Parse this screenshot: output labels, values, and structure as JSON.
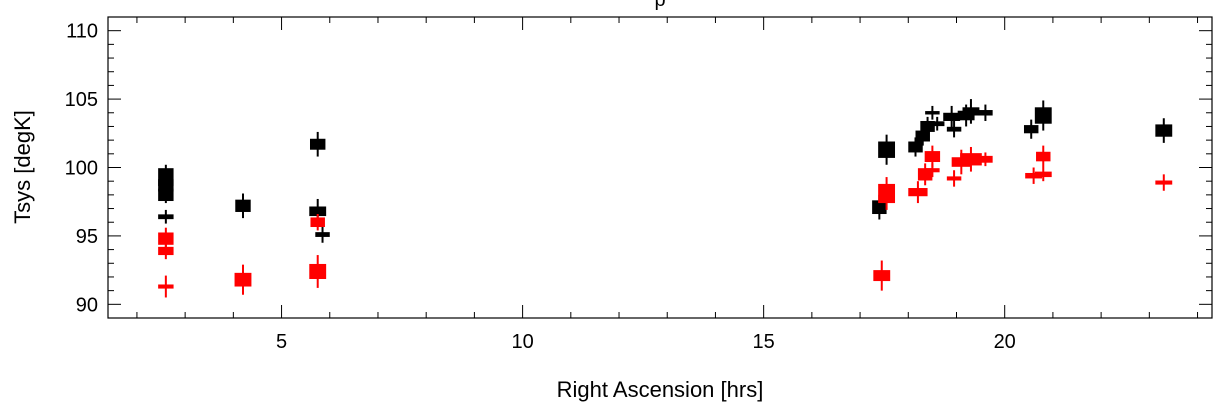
{
  "chart_data": {
    "type": "scatter",
    "title": "p",
    "xlabel": "Right Ascension [hrs]",
    "ylabel": "Tsys [degK]",
    "xlim": [
      1.4,
      24.3
    ],
    "ylim": [
      89.0,
      111.0
    ],
    "grid": false,
    "x_ticks": [
      5,
      10,
      15,
      20
    ],
    "x_tick_labels": [
      "5",
      "10",
      "15",
      "20"
    ],
    "x_minor_step": 1,
    "y_ticks": [
      90,
      95,
      100,
      105,
      110
    ],
    "y_tick_labels": [
      "90",
      "95",
      "100",
      "105",
      "110"
    ],
    "y_minor_step": 1,
    "series": [
      {
        "color": "#000000",
        "points": [
          {
            "x": 2.6,
            "y": 99.3,
            "err": 0.9,
            "w": 0.32,
            "h": 1.3
          },
          {
            "x": 2.6,
            "y": 98.7,
            "err": 0.6,
            "w": 0.32,
            "h": 0.9
          },
          {
            "x": 2.6,
            "y": 98.0,
            "err": 0.6,
            "w": 0.32,
            "h": 0.9
          },
          {
            "x": 2.6,
            "y": 96.4,
            "err": 0.5,
            "w": 0.32,
            "h": 0.35
          },
          {
            "x": 4.2,
            "y": 97.2,
            "err": 0.9,
            "w": 0.32,
            "h": 0.9
          },
          {
            "x": 5.75,
            "y": 101.7,
            "err": 0.9,
            "w": 0.32,
            "h": 0.8
          },
          {
            "x": 5.75,
            "y": 96.8,
            "err": 0.9,
            "w": 0.35,
            "h": 0.7
          },
          {
            "x": 5.85,
            "y": 95.1,
            "err": 0.6,
            "w": 0.3,
            "h": 0.35
          },
          {
            "x": 17.4,
            "y": 97.1,
            "err": 0.9,
            "w": 0.3,
            "h": 1.0
          },
          {
            "x": 17.55,
            "y": 101.3,
            "err": 1.1,
            "w": 0.35,
            "h": 1.2
          },
          {
            "x": 18.15,
            "y": 101.5,
            "err": 0.7,
            "w": 0.3,
            "h": 0.8
          },
          {
            "x": 18.3,
            "y": 102.3,
            "err": 0.7,
            "w": 0.3,
            "h": 0.8
          },
          {
            "x": 18.4,
            "y": 103.0,
            "err": 0.7,
            "w": 0.3,
            "h": 0.8
          },
          {
            "x": 18.5,
            "y": 104.0,
            "err": 0.5,
            "w": 0.3,
            "h": 0.25
          },
          {
            "x": 18.6,
            "y": 103.2,
            "err": 0.5,
            "w": 0.3,
            "h": 0.35
          },
          {
            "x": 18.9,
            "y": 103.7,
            "err": 0.8,
            "w": 0.35,
            "h": 0.6
          },
          {
            "x": 18.95,
            "y": 102.8,
            "err": 0.6,
            "w": 0.3,
            "h": 0.35
          },
          {
            "x": 19.2,
            "y": 103.8,
            "err": 0.8,
            "w": 0.35,
            "h": 0.7
          },
          {
            "x": 19.3,
            "y": 104.1,
            "err": 0.9,
            "w": 0.35,
            "h": 0.6
          },
          {
            "x": 19.6,
            "y": 104.0,
            "err": 0.6,
            "w": 0.3,
            "h": 0.4
          },
          {
            "x": 20.55,
            "y": 102.8,
            "err": 0.7,
            "w": 0.3,
            "h": 0.6
          },
          {
            "x": 20.8,
            "y": 103.8,
            "err": 1.1,
            "w": 0.35,
            "h": 1.2
          },
          {
            "x": 23.3,
            "y": 102.7,
            "err": 0.9,
            "w": 0.35,
            "h": 0.9
          }
        ]
      },
      {
        "color": "#ff0000",
        "points": [
          {
            "x": 2.6,
            "y": 94.8,
            "err": 0.8,
            "w": 0.32,
            "h": 0.9
          },
          {
            "x": 2.6,
            "y": 93.9,
            "err": 0.6,
            "w": 0.32,
            "h": 0.6
          },
          {
            "x": 2.6,
            "y": 91.3,
            "err": 0.8,
            "w": 0.32,
            "h": 0.3
          },
          {
            "x": 4.2,
            "y": 91.8,
            "err": 1.1,
            "w": 0.35,
            "h": 1.0
          },
          {
            "x": 5.75,
            "y": 96.0,
            "err": 0.6,
            "w": 0.3,
            "h": 0.7
          },
          {
            "x": 5.75,
            "y": 92.4,
            "err": 1.2,
            "w": 0.35,
            "h": 1.1
          },
          {
            "x": 17.45,
            "y": 92.1,
            "err": 1.1,
            "w": 0.35,
            "h": 0.8
          },
          {
            "x": 17.55,
            "y": 98.1,
            "err": 1.2,
            "w": 0.35,
            "h": 1.4
          },
          {
            "x": 18.2,
            "y": 98.2,
            "err": 0.8,
            "w": 0.4,
            "h": 0.6
          },
          {
            "x": 18.35,
            "y": 99.5,
            "err": 0.8,
            "w": 0.3,
            "h": 0.9
          },
          {
            "x": 18.5,
            "y": 100.8,
            "err": 0.8,
            "w": 0.32,
            "h": 0.8
          },
          {
            "x": 18.5,
            "y": 99.8,
            "err": 0.5,
            "w": 0.3,
            "h": 0.3
          },
          {
            "x": 18.95,
            "y": 99.2,
            "err": 0.6,
            "w": 0.3,
            "h": 0.3
          },
          {
            "x": 19.1,
            "y": 100.4,
            "err": 0.9,
            "w": 0.4,
            "h": 0.7
          },
          {
            "x": 19.3,
            "y": 100.6,
            "err": 0.9,
            "w": 0.45,
            "h": 0.9
          },
          {
            "x": 19.6,
            "y": 100.6,
            "err": 0.5,
            "w": 0.3,
            "h": 0.5
          },
          {
            "x": 20.6,
            "y": 99.4,
            "err": 0.6,
            "w": 0.35,
            "h": 0.4
          },
          {
            "x": 20.8,
            "y": 100.8,
            "err": 0.8,
            "w": 0.3,
            "h": 0.7
          },
          {
            "x": 20.8,
            "y": 99.5,
            "err": 0.5,
            "w": 0.35,
            "h": 0.4
          },
          {
            "x": 23.3,
            "y": 98.9,
            "err": 0.6,
            "w": 0.35,
            "h": 0.3
          }
        ]
      }
    ]
  }
}
